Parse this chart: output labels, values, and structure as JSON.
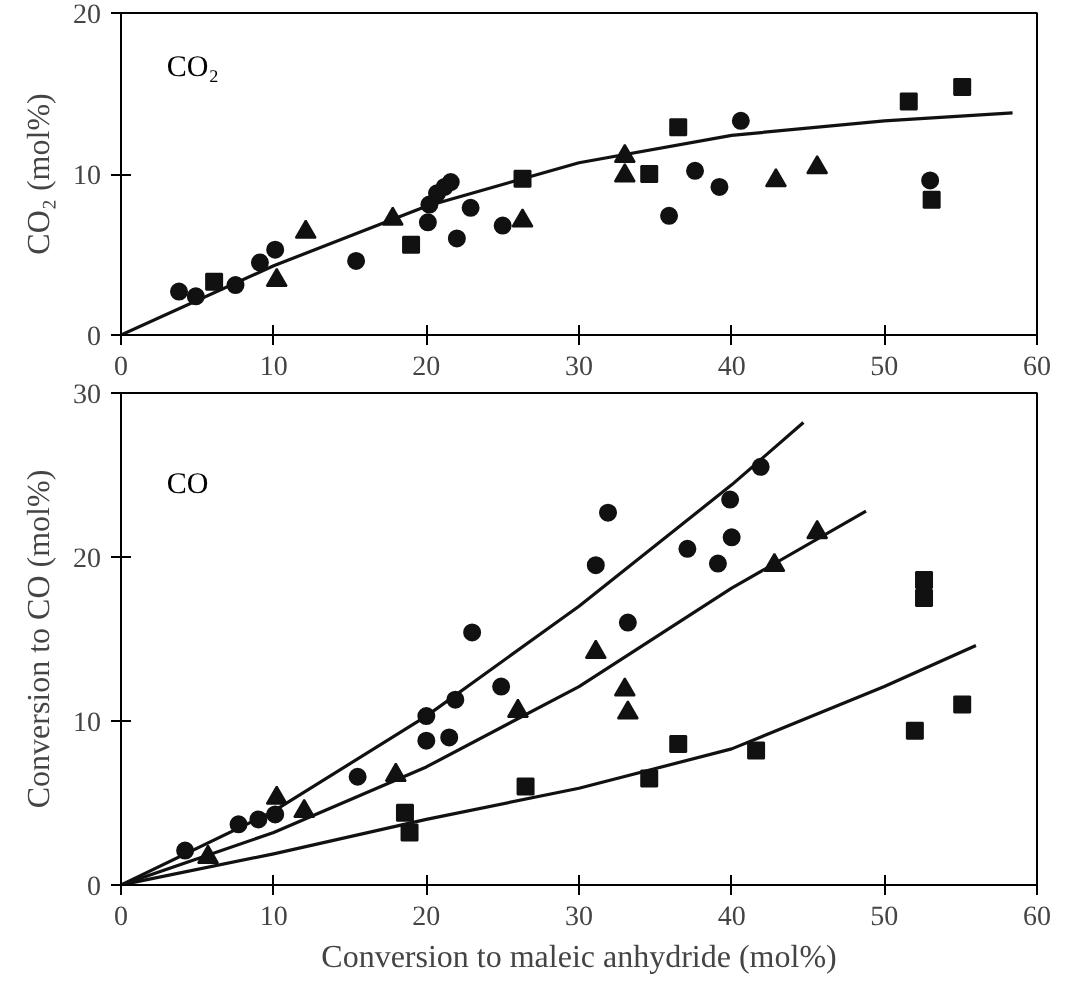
{
  "chart_data": [
    {
      "type": "scatter",
      "ylabel": "CO₂ (mol%)",
      "annotations": [
        "CO₂"
      ],
      "xlim": [
        0,
        60
      ],
      "ylim": [
        0,
        20
      ],
      "xticks": [
        0,
        10,
        20,
        30,
        40,
        50,
        60
      ],
      "yticks": [
        0,
        10,
        20
      ],
      "grid": false,
      "series": [
        {
          "color": "#111111",
          "marker": "circle",
          "x": [
            3.8,
            4.9,
            7.5,
            9.1,
            10.1,
            15.4,
            20.1,
            20.2,
            20.7,
            21.2,
            21.6,
            22,
            22.9,
            25,
            35.9,
            37.6,
            39.2,
            40.6,
            53
          ],
          "values": [
            2.7,
            2.4,
            3.1,
            4.5,
            5.3,
            4.6,
            7.0,
            8.1,
            8.8,
            9.2,
            9.5,
            6.0,
            7.9,
            6.8,
            7.4,
            10.2,
            9.2,
            13.3,
            9.6
          ]
        },
        {
          "color": "#111111",
          "marker": "square",
          "x": [
            6.1,
            19,
            26.3,
            34.6,
            36.5,
            51.6,
            55.1,
            53.1
          ],
          "values": [
            3.3,
            5.6,
            9.7,
            10.0,
            12.9,
            14.5,
            15.4,
            8.4
          ]
        },
        {
          "color": "#111111",
          "marker": "triangle",
          "x": [
            10.2,
            12.1,
            17.8,
            26.3,
            33,
            33,
            42.9,
            45.6
          ],
          "values": [
            3.4,
            6.4,
            7.2,
            7.1,
            11.1,
            9.9,
            9.6,
            10.4
          ]
        },
        {
          "type": "line",
          "color": "#111111",
          "marker": "none",
          "x": [
            0,
            10,
            20,
            30,
            40,
            50,
            58.4
          ],
          "values": [
            0,
            4.3,
            8.0,
            10.7,
            12.4,
            13.3,
            13.8
          ]
        }
      ]
    },
    {
      "type": "scatter",
      "xlabel": "Conversion to maleic anhydride (mol%)",
      "ylabel": "Conversion to CO (mol%)",
      "annotations": [
        "CO"
      ],
      "xlim": [
        0,
        60
      ],
      "ylim": [
        0,
        30
      ],
      "xticks": [
        0,
        10,
        20,
        30,
        40,
        50,
        60
      ],
      "yticks": [
        0,
        10,
        20,
        30
      ],
      "grid": false,
      "series": [
        {
          "color": "#111111",
          "marker": "circle",
          "x": [
            4.2,
            7.7,
            9.0,
            10.1,
            15.5,
            20,
            20,
            21.5,
            21.9,
            23,
            24.9,
            31.1,
            31.9,
            33.2,
            37.1,
            39.1,
            39.9,
            40,
            41.9
          ],
          "values": [
            2.1,
            3.7,
            4.0,
            4.3,
            6.6,
            10.3,
            8.8,
            9.0,
            11.3,
            15.4,
            12.1,
            19.5,
            22.7,
            16.0,
            20.5,
            19.6,
            23.5,
            21.2,
            25.5
          ]
        },
        {
          "color": "#111111",
          "marker": "triangle",
          "x": [
            5.7,
            10.2,
            12,
            18,
            26,
            31.1,
            33,
            33.2,
            42.8,
            45.6
          ],
          "values": [
            1.7,
            5.3,
            4.5,
            6.7,
            10.6,
            14.2,
            11.9,
            10.5,
            19.5,
            21.5
          ]
        },
        {
          "color": "#111111",
          "marker": "square",
          "x": [
            18.6,
            18.9,
            26.5,
            34.6,
            36.5,
            41.6,
            52,
            52.6,
            52.6,
            55.1
          ],
          "values": [
            4.4,
            3.2,
            6.0,
            6.5,
            8.6,
            8.2,
            9.4,
            18.6,
            17.5,
            11.0
          ]
        },
        {
          "type": "line",
          "color": "#111111",
          "marker": "none",
          "x": [
            0,
            10,
            20,
            30,
            40,
            44.7
          ],
          "values": [
            0,
            4.5,
            10.3,
            17.0,
            24.4,
            28.2
          ]
        },
        {
          "type": "line",
          "color": "#111111",
          "marker": "none",
          "x": [
            0,
            10,
            20,
            30,
            40,
            48.8
          ],
          "values": [
            0,
            3.2,
            7.2,
            12.1,
            18.1,
            22.8
          ]
        },
        {
          "type": "line",
          "color": "#111111",
          "marker": "none",
          "x": [
            0,
            10,
            20,
            30,
            40,
            50,
            56
          ],
          "values": [
            0,
            1.9,
            4.0,
            5.9,
            8.3,
            12.1,
            14.6
          ]
        }
      ]
    }
  ]
}
